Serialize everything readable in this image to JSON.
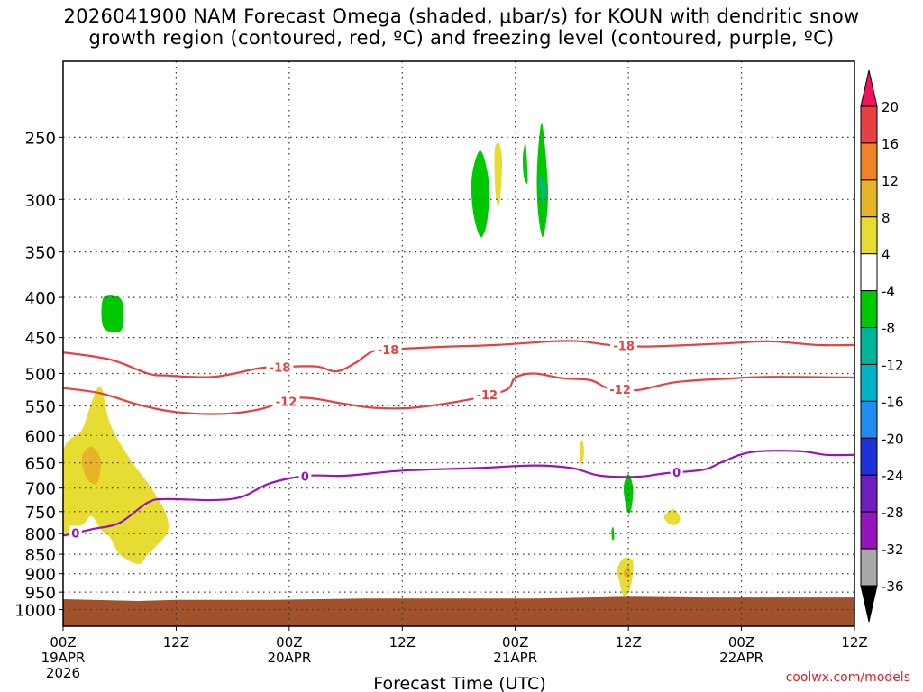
{
  "title": {
    "line1": "2026041900 NAM Forecast Omega (shaded, μbar/s) for KOUN with dendritic snow",
    "line2": "growth region (contoured, red, ºC) and freezing level (contoured, purple, ºC)"
  },
  "footer": "coolwx.com/models",
  "chart_data": {
    "type": "heatmap",
    "xlabel": "Forecast Time (UTC)",
    "ylabel": "",
    "x_unit": "forecast hour",
    "xlim": [
      0,
      84
    ],
    "ylim": [
      1050,
      200
    ],
    "y_scale": "log-pressure (hPa)",
    "grid": true,
    "x_ticks": [
      {
        "hour": 0,
        "lines": [
          "00Z",
          "19APR",
          "2026"
        ]
      },
      {
        "hour": 12,
        "lines": [
          "12Z"
        ]
      },
      {
        "hour": 24,
        "lines": [
          "00Z",
          "20APR"
        ]
      },
      {
        "hour": 36,
        "lines": [
          "12Z"
        ]
      },
      {
        "hour": 48,
        "lines": [
          "00Z",
          "21APR"
        ]
      },
      {
        "hour": 60,
        "lines": [
          "12Z"
        ]
      },
      {
        "hour": 72,
        "lines": [
          "00Z",
          "22APR"
        ]
      },
      {
        "hour": 84,
        "lines": [
          "12Z"
        ]
      }
    ],
    "y_ticks": [
      250,
      300,
      350,
      400,
      450,
      500,
      550,
      600,
      650,
      700,
      750,
      800,
      850,
      900,
      950,
      1000
    ],
    "colorbar": {
      "labels": [
        "20",
        "16",
        "12",
        "8",
        "4",
        "-4",
        "-8",
        "-12",
        "-16",
        "-20",
        "-24",
        "-28",
        "-32",
        "-36"
      ],
      "colors": [
        "#f0145a",
        "#e84040",
        "#f08228",
        "#e6b428",
        "#e6dc32",
        "#ffffff",
        "#00c800",
        "#00b496",
        "#00b4c8",
        "#1e8cf0",
        "#1e32dc",
        "#6e1ebe",
        "#9614be",
        "#a8a8a8",
        "#000000"
      ]
    },
    "contours": [
      {
        "label": "-18",
        "color": "#e84040",
        "points": [
          [
            0,
            470
          ],
          [
            5,
            480
          ],
          [
            9,
            500
          ],
          [
            11,
            503
          ],
          [
            16,
            505
          ],
          [
            21,
            492
          ],
          [
            24,
            490
          ],
          [
            27,
            490
          ],
          [
            29,
            497
          ],
          [
            31,
            485
          ],
          [
            33,
            468
          ],
          [
            36,
            465
          ],
          [
            41,
            462
          ],
          [
            46,
            460
          ],
          [
            52,
            455
          ],
          [
            55,
            455
          ],
          [
            58,
            460
          ],
          [
            62,
            462
          ],
          [
            70,
            458
          ],
          [
            75,
            455
          ],
          [
            80,
            460
          ],
          [
            84,
            460
          ]
        ]
      },
      {
        "label": "-12",
        "color": "#e84040",
        "points": [
          [
            0,
            522
          ],
          [
            4,
            530
          ],
          [
            8,
            548
          ],
          [
            12,
            560
          ],
          [
            17,
            563
          ],
          [
            21,
            555
          ],
          [
            25,
            537
          ],
          [
            30,
            547
          ],
          [
            33,
            553
          ],
          [
            37,
            553
          ],
          [
            43,
            540
          ],
          [
            47,
            525
          ],
          [
            48,
            506
          ],
          [
            50,
            500
          ],
          [
            53,
            507
          ],
          [
            56,
            510
          ],
          [
            58,
            523
          ],
          [
            61,
            525
          ],
          [
            65,
            513
          ],
          [
            70,
            508
          ],
          [
            75,
            505
          ],
          [
            84,
            506
          ]
        ]
      },
      {
        "label": "0",
        "color": "#9614be",
        "points": [
          [
            0,
            805
          ],
          [
            3,
            790
          ],
          [
            6,
            775
          ],
          [
            9,
            730
          ],
          [
            11,
            723
          ],
          [
            16,
            725
          ],
          [
            19,
            718
          ],
          [
            22,
            690
          ],
          [
            26,
            675
          ],
          [
            30,
            675
          ],
          [
            36,
            665
          ],
          [
            44,
            660
          ],
          [
            50,
            655
          ],
          [
            54,
            660
          ],
          [
            57,
            675
          ],
          [
            61,
            677
          ],
          [
            64,
            670
          ],
          [
            68,
            663
          ],
          [
            70,
            648
          ],
          [
            73,
            630
          ],
          [
            78,
            628
          ],
          [
            81,
            635
          ],
          [
            84,
            635
          ]
        ]
      }
    ],
    "shaded_regions": [
      {
        "value": 5,
        "color": "#e6dc32",
        "points": [
          [
            0,
            630
          ],
          [
            2,
            590
          ],
          [
            3,
            545
          ],
          [
            4,
            520
          ],
          [
            5,
            580
          ],
          [
            7,
            640
          ],
          [
            9,
            690
          ],
          [
            10,
            720
          ],
          [
            11,
            760
          ],
          [
            11,
            800
          ],
          [
            9,
            850
          ],
          [
            8,
            875
          ],
          [
            6,
            850
          ],
          [
            5,
            810
          ],
          [
            4,
            790
          ],
          [
            3,
            760
          ],
          [
            2,
            780
          ],
          [
            0,
            790
          ]
        ]
      },
      {
        "value": 9,
        "color": "#e6b428",
        "points": [
          [
            2,
            640
          ],
          [
            3,
            620
          ],
          [
            4,
            645
          ],
          [
            3.6,
            690
          ],
          [
            2.5,
            680
          ]
        ]
      },
      {
        "value": -5,
        "color": "#00c800",
        "points": [
          [
            4.3,
            400
          ],
          [
            6.2,
            403
          ],
          [
            6.2,
            440
          ],
          [
            4.3,
            437
          ]
        ]
      },
      {
        "value": -5,
        "color": "#00c800",
        "points": [
          [
            43.4,
            280
          ],
          [
            44.3,
            260
          ],
          [
            45.2,
            285
          ],
          [
            45,
            320
          ],
          [
            44.3,
            335
          ],
          [
            43.5,
            310
          ]
        ]
      },
      {
        "value": 5,
        "color": "#e6dc32",
        "points": [
          [
            45.8,
            260
          ],
          [
            46.3,
            255
          ],
          [
            46.6,
            270
          ],
          [
            46.3,
            305
          ],
          [
            45.9,
            295
          ]
        ]
      },
      {
        "value": -5,
        "color": "#00c800",
        "points": [
          [
            48.8,
            265
          ],
          [
            49.1,
            255
          ],
          [
            49.3,
            285
          ],
          [
            48.9,
            280
          ]
        ]
      },
      {
        "value": -5,
        "color": "#00c800",
        "points": [
          [
            50.3,
            275
          ],
          [
            50.8,
            240
          ],
          [
            51.4,
            280
          ],
          [
            51.4,
            310
          ],
          [
            50.9,
            335
          ],
          [
            50.4,
            310
          ]
        ]
      },
      {
        "value": -8,
        "color": "#00b496",
        "points": [
          [
            50.6,
            280
          ],
          [
            51.2,
            290
          ],
          [
            50.9,
            305
          ]
        ]
      },
      {
        "value": 5,
        "color": "#e6dc32",
        "points": [
          [
            54.8,
            622
          ],
          [
            55.1,
            608
          ],
          [
            55.3,
            630
          ],
          [
            55,
            655
          ]
        ]
      },
      {
        "value": -5,
        "color": "#00c800",
        "points": [
          [
            59.5,
            700
          ],
          [
            60,
            672
          ],
          [
            60.5,
            700
          ],
          [
            60.3,
            745
          ],
          [
            59.9,
            750
          ]
        ]
      },
      {
        "value": -5,
        "color": "#00c800",
        "points": [
          [
            58.2,
            795
          ],
          [
            58.4,
            785
          ],
          [
            58.5,
            810
          ],
          [
            58.3,
            815
          ]
        ]
      },
      {
        "value": 5,
        "color": "#e6dc32",
        "points": [
          [
            58.8,
            890
          ],
          [
            59.5,
            860
          ],
          [
            60.5,
            870
          ],
          [
            60.2,
            940
          ],
          [
            59.5,
            960
          ],
          [
            59,
            915
          ]
        ]
      },
      {
        "value": 9,
        "color": "#e6b428",
        "points": [
          [
            59.5,
            895
          ],
          [
            60,
            880
          ],
          [
            60.2,
            905
          ],
          [
            59.7,
            910
          ]
        ]
      },
      {
        "value": 5,
        "color": "#e6dc32",
        "points": [
          [
            63.8,
            760
          ],
          [
            64.8,
            745
          ],
          [
            65.5,
            765
          ],
          [
            65,
            780
          ],
          [
            64.2,
            775
          ]
        ]
      }
    ],
    "terrain": {
      "color": "#a0522d",
      "surface_pressure": [
        [
          0,
          970
        ],
        [
          8,
          975
        ],
        [
          12,
          972
        ],
        [
          22,
          972
        ],
        [
          32,
          968
        ],
        [
          50,
          968
        ],
        [
          60,
          963
        ],
        [
          68,
          965
        ],
        [
          84,
          965
        ]
      ]
    }
  }
}
